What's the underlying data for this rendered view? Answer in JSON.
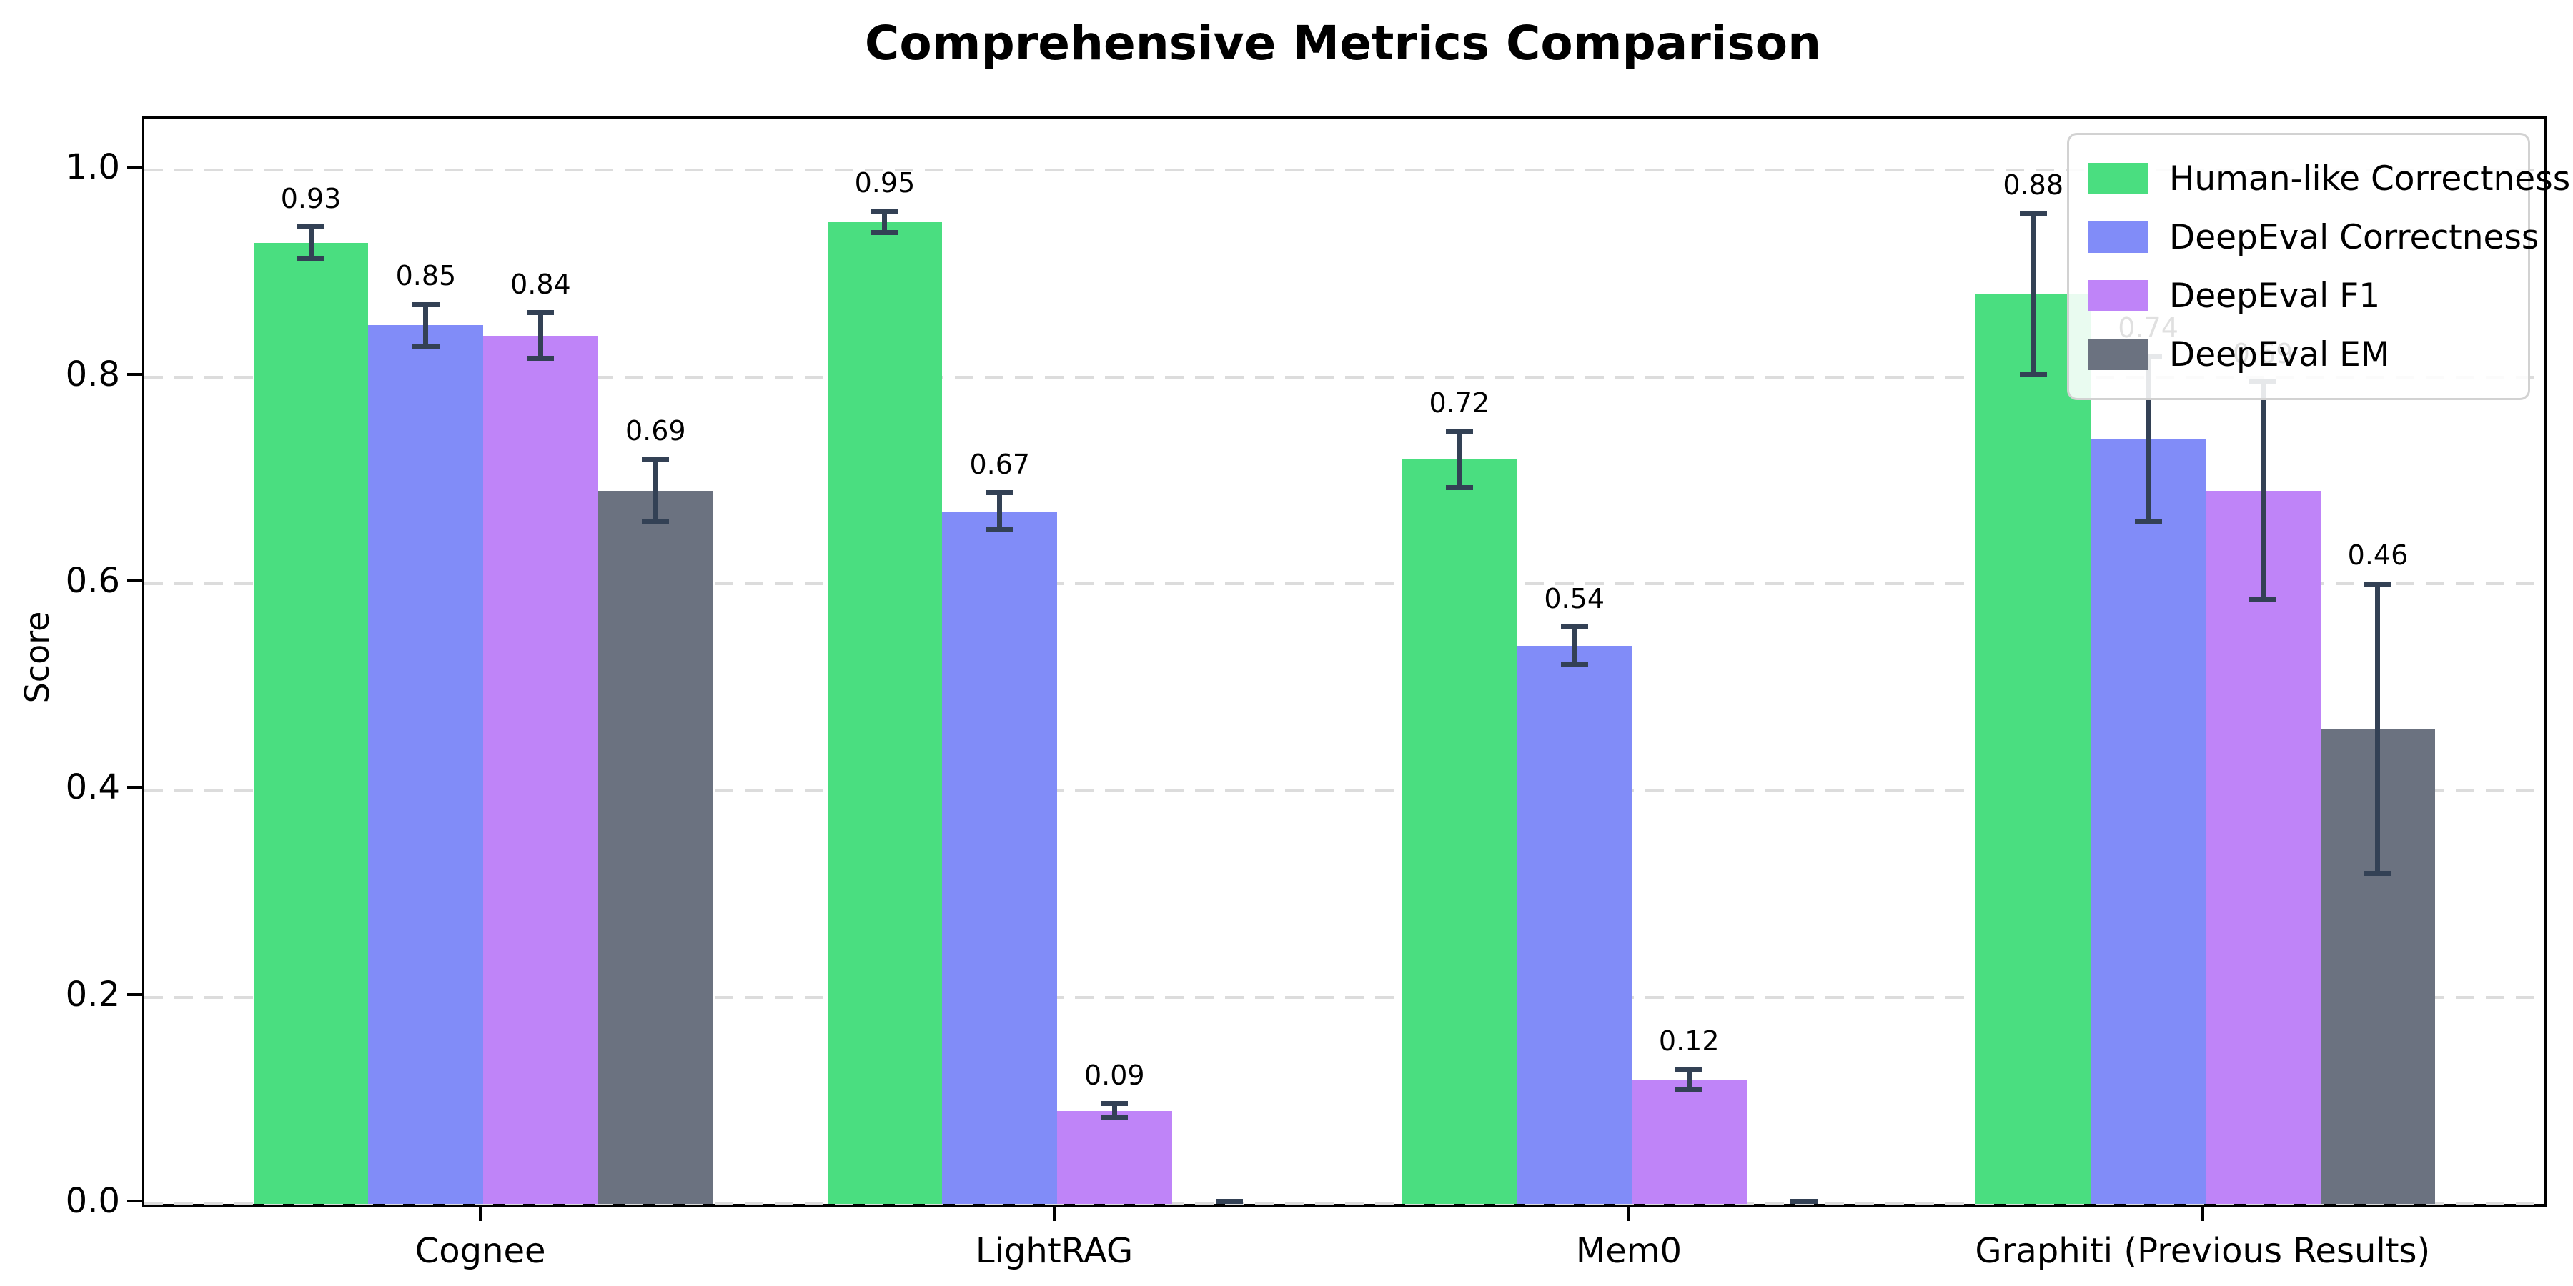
{
  "chart_data": {
    "type": "bar",
    "title": "Comprehensive Metrics Comparison",
    "ylabel": "Score",
    "xlabel": "",
    "categories": [
      "Cognee",
      "LightRAG",
      "Mem0",
      "Graphiti (Previous Results)"
    ],
    "series": [
      {
        "name": "Human-like Correctness",
        "color": "#4ade80",
        "values": [
          0.93,
          0.95,
          0.72,
          0.88
        ],
        "errors": [
          0.015,
          0.01,
          0.027,
          0.078
        ],
        "labels": [
          "0.93",
          "0.95",
          "0.72",
          "0.88"
        ]
      },
      {
        "name": "DeepEval Correctness",
        "color": "#818cf8",
        "values": [
          0.85,
          0.67,
          0.54,
          0.74
        ],
        "errors": [
          0.02,
          0.018,
          0.018,
          0.08
        ],
        "labels": [
          "0.85",
          "0.67",
          "0.54",
          "0.74"
        ]
      },
      {
        "name": "DeepEval F1",
        "color": "#bf84f8",
        "values": [
          0.84,
          0.09,
          0.12,
          0.69
        ],
        "errors": [
          0.022,
          0.007,
          0.01,
          0.105
        ],
        "labels": [
          "0.84",
          "0.09",
          "0.12",
          "0.69"
        ]
      },
      {
        "name": "DeepEval EM",
        "color": "#6b7280",
        "values": [
          0.69,
          0.0,
          0.0,
          0.46
        ],
        "errors": [
          0.03,
          0.003,
          0.003,
          0.14
        ],
        "labels": [
          "0.69",
          null,
          null,
          "0.46"
        ]
      }
    ],
    "yticks": [
      "0.0",
      "0.2",
      "0.4",
      "0.6",
      "0.8",
      "1.0"
    ],
    "ytick_values": [
      0.0,
      0.2,
      0.4,
      0.6,
      0.8,
      1.0
    ],
    "ylim": [
      0,
      1.05
    ],
    "grid": "horizontal-dashed",
    "gridline_color": "#dcdcdc",
    "error_bar_color": "#334155",
    "legend_position": "upper-right"
  }
}
